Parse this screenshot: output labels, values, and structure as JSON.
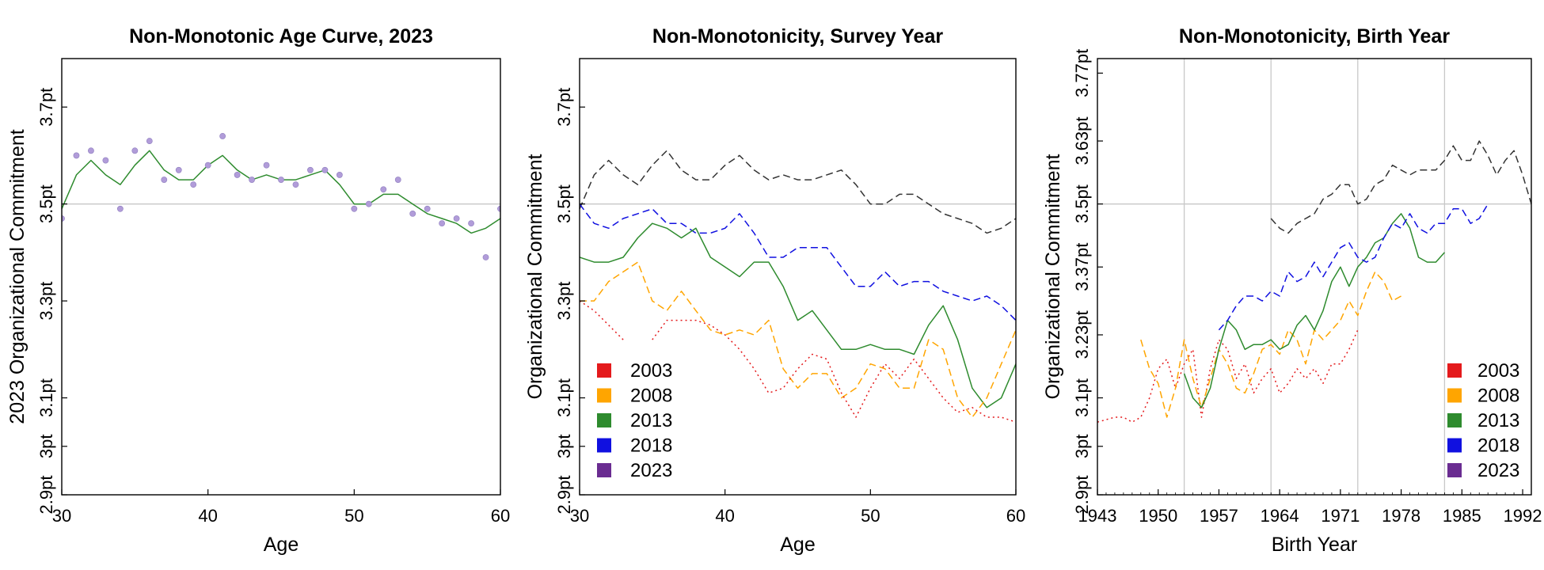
{
  "chart_data": [
    {
      "type": "line",
      "title": "Non-Monotonic Age Curve, 2023",
      "xlabel": "Age",
      "ylabel": "2023 Organizational Commitment",
      "xlim": [
        30,
        60
      ],
      "ylim": [
        2.9,
        3.8
      ],
      "xticks": [
        30,
        40,
        50,
        60
      ],
      "yticks": [
        {
          "value": 2.9,
          "label": "2.9pt"
        },
        {
          "value": 3.0,
          "label": "3pt"
        },
        {
          "value": 3.1,
          "label": "3.1pt"
        },
        {
          "value": 3.3,
          "label": "3.3pt"
        },
        {
          "value": 3.5,
          "label": "3.5pt"
        },
        {
          "value": 3.7,
          "label": "3.7pt"
        }
      ],
      "hline": 3.5,
      "series": [
        {
          "color": "#2e8b2e",
          "dash": "solid",
          "kind": "line",
          "x": [
            30,
            31,
            32,
            33,
            34,
            35,
            36,
            37,
            38,
            39,
            40,
            41,
            42,
            43,
            44,
            45,
            46,
            47,
            48,
            49,
            50,
            51,
            52,
            53,
            54,
            55,
            56,
            57,
            58,
            59,
            60
          ],
          "y": [
            3.49,
            3.56,
            3.59,
            3.56,
            3.54,
            3.58,
            3.61,
            3.57,
            3.55,
            3.55,
            3.58,
            3.6,
            3.57,
            3.55,
            3.56,
            3.55,
            3.55,
            3.56,
            3.57,
            3.54,
            3.5,
            3.5,
            3.52,
            3.52,
            3.5,
            3.48,
            3.47,
            3.46,
            3.44,
            3.45,
            3.47
          ]
        },
        {
          "color": "#b19cd9",
          "kind": "scatter",
          "x": [
            30,
            31,
            32,
            33,
            34,
            35,
            36,
            37,
            38,
            39,
            40,
            41,
            42,
            43,
            44,
            45,
            46,
            47,
            48,
            49,
            50,
            51,
            52,
            53,
            54,
            55,
            56,
            57,
            58,
            59,
            60
          ],
          "y": [
            3.47,
            3.6,
            3.61,
            3.59,
            3.49,
            3.61,
            3.63,
            3.55,
            3.57,
            3.54,
            3.58,
            3.64,
            3.56,
            3.55,
            3.58,
            3.55,
            3.54,
            3.57,
            3.57,
            3.56,
            3.49,
            3.5,
            3.53,
            3.55,
            3.48,
            3.49,
            3.46,
            3.47,
            3.46,
            3.39,
            3.49
          ]
        }
      ]
    },
    {
      "type": "line",
      "title": "Non-Monotonicity, Survey Year",
      "xlabel": "Age",
      "ylabel": "Organizational Commitment",
      "xlim": [
        30,
        60
      ],
      "ylim": [
        2.9,
        3.8
      ],
      "xticks": [
        30,
        40,
        50,
        60
      ],
      "yticks": [
        {
          "value": 2.9,
          "label": "2.9pt"
        },
        {
          "value": 3.0,
          "label": "3pt"
        },
        {
          "value": 3.1,
          "label": "3.1pt"
        },
        {
          "value": 3.3,
          "label": "3.3pt"
        },
        {
          "value": 3.5,
          "label": "3.5pt"
        },
        {
          "value": 3.7,
          "label": "3.7pt"
        }
      ],
      "hline": 3.5,
      "legend": {
        "placement": "bottom-left",
        "entries": [
          {
            "name": "2003",
            "color": "#e41a1c"
          },
          {
            "name": "2008",
            "color": "#ffa500"
          },
          {
            "name": "2013",
            "color": "#2e8b2e"
          },
          {
            "name": "2018",
            "color": "#1010e0"
          },
          {
            "name": "2023",
            "color": "#6a2c91"
          }
        ]
      },
      "series": [
        {
          "color": "#333333",
          "dash": "dashed",
          "x": [
            30,
            31,
            32,
            33,
            34,
            35,
            36,
            37,
            38,
            39,
            40,
            41,
            42,
            43,
            44,
            45,
            46,
            47,
            48,
            49,
            50,
            51,
            52,
            53,
            54,
            55,
            56,
            57,
            58,
            59,
            60
          ],
          "y": [
            3.49,
            3.56,
            3.59,
            3.56,
            3.54,
            3.58,
            3.61,
            3.57,
            3.55,
            3.55,
            3.58,
            3.6,
            3.57,
            3.55,
            3.56,
            3.55,
            3.55,
            3.56,
            3.57,
            3.54,
            3.5,
            3.5,
            3.52,
            3.52,
            3.5,
            3.48,
            3.47,
            3.46,
            3.44,
            3.45,
            3.47
          ]
        },
        {
          "color": "#1010e0",
          "dash": "dashed",
          "x": [
            30,
            31,
            32,
            33,
            34,
            35,
            36,
            37,
            38,
            39,
            40,
            41,
            42,
            43,
            44,
            45,
            46,
            47,
            48,
            49,
            50,
            51,
            52,
            53,
            54,
            55,
            56,
            57,
            58,
            59,
            60
          ],
          "y": [
            3.5,
            3.46,
            3.45,
            3.47,
            3.48,
            3.49,
            3.46,
            3.46,
            3.44,
            3.44,
            3.45,
            3.48,
            3.44,
            3.39,
            3.39,
            3.41,
            3.41,
            3.41,
            3.37,
            3.33,
            3.33,
            3.36,
            3.33,
            3.34,
            3.34,
            3.32,
            3.31,
            3.3,
            3.31,
            3.29,
            3.26
          ]
        },
        {
          "color": "#2e8b2e",
          "dash": "solid",
          "x": [
            30,
            31,
            32,
            33,
            34,
            35,
            36,
            37,
            38,
            39,
            40,
            41,
            42,
            43,
            44,
            45,
            46,
            47,
            48,
            49,
            50,
            51,
            52,
            53,
            54,
            55,
            56,
            57,
            58,
            59,
            60
          ],
          "y": [
            3.39,
            3.38,
            3.38,
            3.39,
            3.43,
            3.46,
            3.45,
            3.43,
            3.45,
            3.39,
            3.37,
            3.35,
            3.38,
            3.38,
            3.33,
            3.26,
            3.28,
            3.24,
            3.2,
            3.2,
            3.21,
            3.2,
            3.2,
            3.19,
            3.25,
            3.29,
            3.22,
            3.12,
            3.08,
            3.1,
            3.17
          ]
        },
        {
          "color": "#ffa500",
          "dash": "dashed",
          "x": [
            30,
            31,
            32,
            33,
            34,
            35,
            36,
            37,
            38,
            39,
            40,
            41,
            42,
            43,
            44,
            45,
            46,
            47,
            48,
            49,
            50,
            51,
            52,
            53,
            54,
            55,
            56,
            57,
            58,
            59,
            60
          ],
          "y": [
            3.3,
            3.3,
            3.34,
            3.36,
            3.38,
            3.3,
            3.28,
            3.32,
            3.28,
            3.24,
            3.23,
            3.24,
            3.23,
            3.26,
            3.16,
            3.12,
            3.15,
            3.15,
            3.1,
            3.12,
            3.17,
            3.16,
            3.12,
            3.12,
            3.22,
            3.2,
            3.1,
            3.06,
            3.1,
            3.17,
            3.24
          ]
        },
        {
          "color": "#e41a1c",
          "dash": "dotted",
          "x": [
            30,
            31,
            32,
            33
          ],
          "y": [
            3.3,
            3.28,
            3.25,
            3.22
          ]
        },
        {
          "color": "#e41a1c",
          "dash": "dotted",
          "x": [
            35,
            36,
            37,
            38,
            39,
            40,
            41,
            42,
            43,
            44,
            45,
            46,
            47,
            48,
            49,
            50,
            51,
            52,
            53,
            54,
            55,
            56,
            57,
            58,
            59,
            60
          ],
          "y": [
            3.22,
            3.26,
            3.26,
            3.26,
            3.25,
            3.23,
            3.2,
            3.16,
            3.11,
            3.12,
            3.16,
            3.19,
            3.18,
            3.11,
            3.06,
            3.12,
            3.17,
            3.14,
            3.18,
            3.14,
            3.1,
            3.07,
            3.08,
            3.06,
            3.06,
            3.05
          ]
        }
      ]
    },
    {
      "type": "line",
      "title": "Non-Monotonicity, Birth Year",
      "xlabel": "Birth Year",
      "ylabel": "Organizational Commitment",
      "xlim": [
        1943,
        1993
      ],
      "ylim": [
        2.9,
        3.8
      ],
      "xticks": [
        1943,
        1950,
        1957,
        1964,
        1971,
        1978,
        1985,
        1992
      ],
      "yticks": [
        {
          "value": 2.9,
          "label": "2.9pt"
        },
        {
          "value": 3.0,
          "label": "3pt"
        },
        {
          "value": 3.1,
          "label": "3.1pt"
        },
        {
          "value": 3.23,
          "label": "3.23pt"
        },
        {
          "value": 3.37,
          "label": "3.37pt"
        },
        {
          "value": 3.5,
          "label": "3.5pt"
        },
        {
          "value": 3.63,
          "label": "3.63pt"
        },
        {
          "value": 3.77,
          "label": "3.77pt"
        }
      ],
      "hline": 3.5,
      "vlines": [
        1953,
        1963,
        1973,
        1983
      ],
      "legend": {
        "placement": "bottom-right",
        "entries": [
          {
            "name": "2003",
            "color": "#e41a1c"
          },
          {
            "name": "2008",
            "color": "#ffa500"
          },
          {
            "name": "2013",
            "color": "#2e8b2e"
          },
          {
            "name": "2018",
            "color": "#1010e0"
          },
          {
            "name": "2023",
            "color": "#6a2c91"
          }
        ]
      },
      "series": [
        {
          "color": "#e41a1c",
          "dash": "dotted",
          "x": [
            1943,
            1945,
            1946,
            1947,
            1948,
            1949,
            1950,
            1951,
            1952,
            1953,
            1954,
            1955,
            1956,
            1957,
            1958,
            1959,
            1960,
            1961,
            1962,
            1963,
            1964,
            1965,
            1966,
            1967,
            1968,
            1969,
            1970,
            1971,
            1972,
            1973
          ],
          "y": [
            3.05,
            3.06,
            3.06,
            3.05,
            3.06,
            3.1,
            3.16,
            3.18,
            3.12,
            3.17,
            3.2,
            3.06,
            3.16,
            3.22,
            3.2,
            3.14,
            3.17,
            3.11,
            3.14,
            3.16,
            3.11,
            3.13,
            3.16,
            3.14,
            3.16,
            3.13,
            3.17,
            3.17,
            3.2,
            3.24
          ]
        },
        {
          "color": "#ffa500",
          "dash": "dashed",
          "x": [
            1948,
            1949,
            1950,
            1951,
            1952,
            1953,
            1954,
            1955,
            1956,
            1957,
            1958,
            1959,
            1960,
            1961,
            1962,
            1963,
            1964,
            1965,
            1966,
            1967,
            1968,
            1969,
            1970,
            1971,
            1972,
            1973,
            1974,
            1975,
            1976,
            1977,
            1978
          ],
          "y": [
            3.22,
            3.16,
            3.13,
            3.06,
            3.12,
            3.22,
            3.14,
            3.08,
            3.14,
            3.2,
            3.17,
            3.12,
            3.11,
            3.15,
            3.2,
            3.21,
            3.19,
            3.24,
            3.22,
            3.17,
            3.24,
            3.22,
            3.24,
            3.26,
            3.3,
            3.27,
            3.32,
            3.36,
            3.34,
            3.3,
            3.31
          ]
        },
        {
          "color": "#2e8b2e",
          "dash": "solid",
          "x": [
            1953,
            1954,
            1955,
            1956,
            1957,
            1958,
            1959,
            1960,
            1961,
            1962,
            1963,
            1964,
            1965,
            1966,
            1967,
            1968,
            1969,
            1970,
            1971,
            1972,
            1973,
            1974,
            1975,
            1976,
            1977,
            1978,
            1979,
            1980,
            1981,
            1982,
            1983
          ],
          "y": [
            3.15,
            3.1,
            3.08,
            3.12,
            3.2,
            3.26,
            3.24,
            3.2,
            3.21,
            3.21,
            3.22,
            3.2,
            3.21,
            3.25,
            3.27,
            3.24,
            3.28,
            3.34,
            3.37,
            3.33,
            3.37,
            3.39,
            3.42,
            3.43,
            3.46,
            3.48,
            3.45,
            3.39,
            3.38,
            3.38,
            3.4
          ]
        },
        {
          "color": "#1010e0",
          "dash": "dashed",
          "x": [
            1957,
            1958,
            1959,
            1960,
            1961,
            1962,
            1963,
            1964,
            1965,
            1966,
            1967,
            1968,
            1969,
            1970,
            1971,
            1972,
            1973,
            1974,
            1975,
            1976,
            1977,
            1978,
            1979,
            1980,
            1981,
            1982,
            1983,
            1984,
            1985,
            1986,
            1987,
            1988
          ],
          "y": [
            3.24,
            3.26,
            3.29,
            3.31,
            3.31,
            3.3,
            3.32,
            3.31,
            3.36,
            3.34,
            3.35,
            3.38,
            3.35,
            3.38,
            3.41,
            3.42,
            3.39,
            3.38,
            3.39,
            3.43,
            3.46,
            3.45,
            3.48,
            3.45,
            3.44,
            3.46,
            3.46,
            3.49,
            3.49,
            3.46,
            3.47,
            3.5
          ]
        },
        {
          "color": "#333333",
          "dash": "dashed",
          "x": [
            1963,
            1964,
            1965,
            1966,
            1967,
            1968,
            1969,
            1970,
            1971,
            1972,
            1973,
            1974,
            1975,
            1976,
            1977,
            1978,
            1979,
            1980,
            1981,
            1982,
            1983,
            1984,
            1985,
            1986,
            1987,
            1988,
            1989,
            1990,
            1991,
            1992,
            1993
          ],
          "y": [
            3.47,
            3.45,
            3.44,
            3.46,
            3.47,
            3.48,
            3.51,
            3.52,
            3.54,
            3.54,
            3.5,
            3.51,
            3.54,
            3.55,
            3.58,
            3.57,
            3.56,
            3.57,
            3.57,
            3.57,
            3.59,
            3.62,
            3.59,
            3.59,
            3.63,
            3.6,
            3.56,
            3.59,
            3.61,
            3.56,
            3.5
          ]
        }
      ]
    }
  ]
}
